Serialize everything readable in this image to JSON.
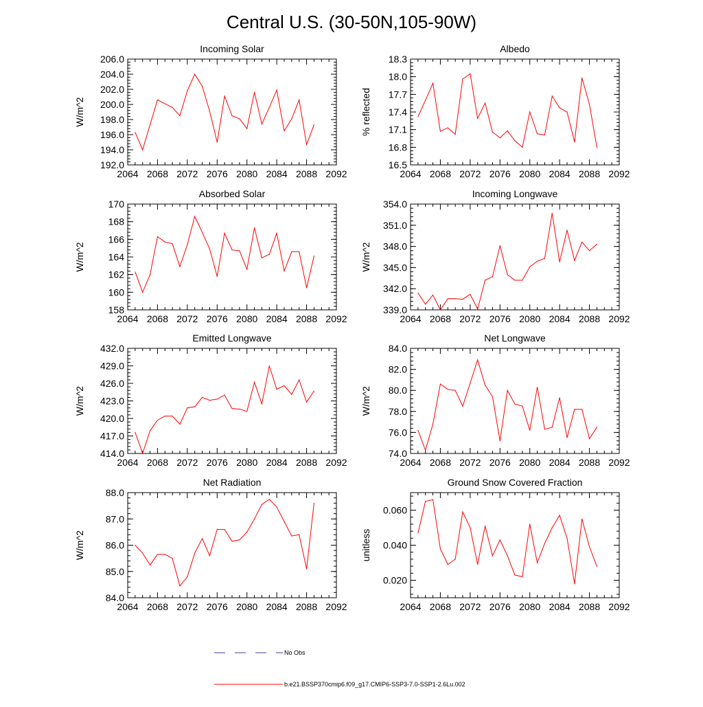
{
  "title": "Central U.S. (30-50N,105-90W)",
  "colors": {
    "series": "#ff0000",
    "obs": "#3a3aa0",
    "axis": "#000000"
  },
  "legend": {
    "obs_label": "No Obs",
    "series_label": "b.e21.BSSP370cmip6.f09_g17.CMIP6-SSP3-7.0-SSP1-2.6Lu.002"
  },
  "chart_data": [
    {
      "type": "line",
      "title": "Incoming Solar",
      "ylabel": "W/m^2",
      "xlim": [
        2064,
        2092
      ],
      "ylim": [
        192,
        206
      ],
      "xticks": [
        2064,
        2068,
        2072,
        2076,
        2080,
        2084,
        2088,
        2092
      ],
      "yticks": [
        "192.0",
        "194.0",
        "196.0",
        "198.0",
        "200.0",
        "202.0",
        "204.0",
        "206.0"
      ],
      "x": [
        2065,
        2066,
        2067,
        2068,
        2069,
        2070,
        2071,
        2072,
        2073,
        2074,
        2075,
        2076,
        2077,
        2078,
        2079,
        2080,
        2081,
        2082,
        2083,
        2084,
        2085,
        2086,
        2087,
        2088,
        2089
      ],
      "y": [
        196.3,
        194.0,
        197.3,
        200.6,
        200.1,
        199.6,
        198.5,
        201.8,
        204.0,
        202.4,
        199.1,
        195.0,
        201.1,
        198.5,
        198.1,
        196.8,
        201.6,
        197.4,
        199.6,
        201.9,
        196.5,
        198.1,
        200.6,
        194.7,
        197.3
      ],
      "grid": false,
      "legend": "none"
    },
    {
      "type": "line",
      "title": "Albedo",
      "ylabel": "% reflected",
      "xlim": [
        2064,
        2092
      ],
      "ylim": [
        16.5,
        18.3
      ],
      "xticks": [
        2064,
        2068,
        2072,
        2076,
        2080,
        2084,
        2088,
        2092
      ],
      "yticks": [
        "16.5",
        "16.8",
        "17.1",
        "17.4",
        "17.7",
        "18.0",
        "18.3"
      ],
      "x": [
        2065,
        2066,
        2067,
        2068,
        2069,
        2070,
        2071,
        2072,
        2073,
        2074,
        2075,
        2076,
        2077,
        2078,
        2079,
        2080,
        2081,
        2082,
        2083,
        2084,
        2085,
        2086,
        2087,
        2088,
        2089
      ],
      "y": [
        17.32,
        17.6,
        17.89,
        17.07,
        17.13,
        17.02,
        17.96,
        18.05,
        17.29,
        17.55,
        17.06,
        16.96,
        17.08,
        16.91,
        16.8,
        17.4,
        17.03,
        17.01,
        17.67,
        17.47,
        17.4,
        16.89,
        17.98,
        17.53,
        16.8
      ],
      "grid": false,
      "legend": "none"
    },
    {
      "type": "line",
      "title": "Absorbed Solar",
      "ylabel": "W/m^2",
      "xlim": [
        2064,
        2092
      ],
      "ylim": [
        158,
        170
      ],
      "xticks": [
        2064,
        2068,
        2072,
        2076,
        2080,
        2084,
        2088,
        2092
      ],
      "yticks": [
        "158",
        "160",
        "162",
        "164",
        "166",
        "168",
        "170"
      ],
      "x": [
        2065,
        2066,
        2067,
        2068,
        2069,
        2070,
        2071,
        2072,
        2073,
        2074,
        2075,
        2076,
        2077,
        2078,
        2079,
        2080,
        2081,
        2082,
        2083,
        2084,
        2085,
        2086,
        2087,
        2088,
        2089
      ],
      "y": [
        162.3,
        160.0,
        162.0,
        166.3,
        165.7,
        165.5,
        162.9,
        165.4,
        168.6,
        166.8,
        164.9,
        161.8,
        166.7,
        164.8,
        164.7,
        162.6,
        167.3,
        163.9,
        164.3,
        166.7,
        162.4,
        164.6,
        164.6,
        160.5,
        164.1
      ],
      "grid": false,
      "legend": "none"
    },
    {
      "type": "line",
      "title": "Incoming Longwave",
      "ylabel": "W/m^2",
      "xlim": [
        2064,
        2092
      ],
      "ylim": [
        339,
        354
      ],
      "xticks": [
        2064,
        2068,
        2072,
        2076,
        2080,
        2084,
        2088,
        2092
      ],
      "yticks": [
        "339.0",
        "342.0",
        "345.0",
        "348.0",
        "351.0",
        "354.0"
      ],
      "x": [
        2065,
        2066,
        2067,
        2068,
        2069,
        2070,
        2071,
        2072,
        2073,
        2074,
        2075,
        2076,
        2077,
        2078,
        2079,
        2080,
        2081,
        2082,
        2083,
        2084,
        2085,
        2086,
        2087,
        2088,
        2089
      ],
      "y": [
        341.4,
        339.8,
        341.1,
        339.0,
        340.6,
        340.6,
        340.5,
        341.2,
        339.1,
        343.2,
        343.7,
        348.1,
        344.0,
        343.2,
        343.2,
        345.1,
        345.9,
        346.3,
        352.7,
        345.8,
        350.3,
        346.0,
        348.6,
        347.4,
        348.3
      ],
      "grid": false,
      "legend": "none"
    },
    {
      "type": "line",
      "title": "Emitted Longwave",
      "ylabel": "W/m^2",
      "xlim": [
        2064,
        2092
      ],
      "ylim": [
        414,
        432
      ],
      "xticks": [
        2064,
        2068,
        2072,
        2076,
        2080,
        2084,
        2088,
        2092
      ],
      "yticks": [
        "414.0",
        "417.0",
        "420.0",
        "423.0",
        "426.0",
        "429.0",
        "432.0"
      ],
      "x": [
        2065,
        2066,
        2067,
        2068,
        2069,
        2070,
        2071,
        2072,
        2073,
        2074,
        2075,
        2076,
        2077,
        2078,
        2079,
        2080,
        2081,
        2082,
        2083,
        2084,
        2085,
        2086,
        2087,
        2088,
        2089
      ],
      "y": [
        417.6,
        414.0,
        417.9,
        419.7,
        420.4,
        420.4,
        419.0,
        421.8,
        422.0,
        423.6,
        423.1,
        423.3,
        424.0,
        421.7,
        421.6,
        421.2,
        426.2,
        422.5,
        429.0,
        425.0,
        425.6,
        424.1,
        426.6,
        422.8,
        424.7
      ],
      "grid": false,
      "legend": "none"
    },
    {
      "type": "line",
      "title": "Net Longwave",
      "ylabel": "W/m^2",
      "xlim": [
        2064,
        2092
      ],
      "ylim": [
        74,
        84
      ],
      "xticks": [
        2064,
        2068,
        2072,
        2076,
        2080,
        2084,
        2088,
        2092
      ],
      "yticks": [
        "74.0",
        "76.0",
        "78.0",
        "80.0",
        "82.0",
        "84.0"
      ],
      "x": [
        2065,
        2066,
        2067,
        2068,
        2069,
        2070,
        2071,
        2072,
        2073,
        2074,
        2075,
        2076,
        2077,
        2078,
        2079,
        2080,
        2081,
        2082,
        2083,
        2084,
        2085,
        2086,
        2087,
        2088,
        2089
      ],
      "y": [
        76.2,
        74.3,
        76.8,
        80.6,
        80.1,
        80.0,
        78.5,
        80.7,
        82.9,
        80.5,
        79.4,
        75.2,
        80.0,
        78.7,
        78.5,
        76.2,
        80.3,
        76.3,
        76.5,
        79.3,
        75.5,
        78.2,
        78.2,
        75.4,
        76.5
      ],
      "grid": false,
      "legend": "none"
    },
    {
      "type": "line",
      "title": "Net Radiation",
      "ylabel": "W/m^2",
      "xlim": [
        2064,
        2092
      ],
      "ylim": [
        84,
        88
      ],
      "xticks": [
        2064,
        2068,
        2072,
        2076,
        2080,
        2084,
        2088,
        2092
      ],
      "yticks": [
        "84.0",
        "85.0",
        "86.0",
        "87.0",
        "88.0"
      ],
      "x": [
        2065,
        2066,
        2067,
        2068,
        2069,
        2070,
        2071,
        2072,
        2073,
        2074,
        2075,
        2076,
        2077,
        2078,
        2079,
        2080,
        2081,
        2082,
        2083,
        2084,
        2085,
        2086,
        2087,
        2088,
        2089
      ],
      "y": [
        86.0,
        85.7,
        85.25,
        85.65,
        85.65,
        85.5,
        84.45,
        84.8,
        85.7,
        86.25,
        85.6,
        86.6,
        86.6,
        86.15,
        86.2,
        86.5,
        87.0,
        87.55,
        87.75,
        87.45,
        86.9,
        86.35,
        86.4,
        85.1,
        87.6
      ],
      "grid": false,
      "legend": "none"
    },
    {
      "type": "line",
      "title": "Ground Snow Covered Fraction",
      "ylabel": "unitless",
      "xlim": [
        2064,
        2092
      ],
      "ylim": [
        0.01,
        0.07
      ],
      "xticks": [
        2064,
        2068,
        2072,
        2076,
        2080,
        2084,
        2088,
        2092
      ],
      "yticks": [
        "0.020",
        "0.040",
        "0.060"
      ],
      "yticks_values": [
        0.02,
        0.04,
        0.06
      ],
      "x": [
        2065,
        2066,
        2067,
        2068,
        2069,
        2070,
        2071,
        2072,
        2073,
        2074,
        2075,
        2076,
        2077,
        2078,
        2079,
        2080,
        2081,
        2082,
        2083,
        2084,
        2085,
        2086,
        2087,
        2088,
        2089
      ],
      "y": [
        0.047,
        0.065,
        0.066,
        0.038,
        0.029,
        0.032,
        0.059,
        0.05,
        0.029,
        0.051,
        0.034,
        0.043,
        0.034,
        0.023,
        0.022,
        0.052,
        0.03,
        0.041,
        0.05,
        0.057,
        0.044,
        0.018,
        0.055,
        0.039,
        0.028
      ],
      "grid": false,
      "legend": "none"
    }
  ]
}
